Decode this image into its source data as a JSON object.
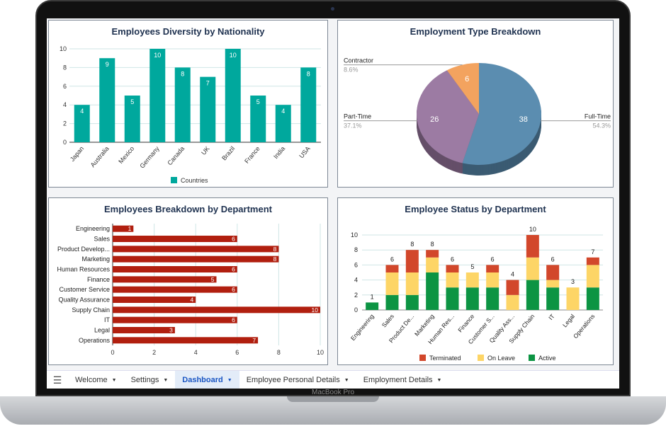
{
  "device_label": "MacBook Pro",
  "tabs": [
    {
      "label": "Welcome",
      "active": false
    },
    {
      "label": "Settings",
      "active": false
    },
    {
      "label": "Dashboard",
      "active": true
    },
    {
      "label": "Employee Personal Details",
      "active": false
    },
    {
      "label": "Employment Details",
      "active": false
    }
  ],
  "chart_data": [
    {
      "type": "bar",
      "title": "Employees Diversity by Nationality",
      "categories": [
        "Japan",
        "Australia",
        "Mexico",
        "Germany",
        "Canada",
        "UK",
        "Brazil",
        "France",
        "India",
        "USA"
      ],
      "series": [
        {
          "name": "Countries",
          "values": [
            4,
            9,
            5,
            10,
            8,
            7,
            10,
            5,
            4,
            8
          ]
        }
      ],
      "ylim": [
        0,
        10
      ],
      "yticks": [
        0,
        2,
        4,
        6,
        8,
        10
      ],
      "color": "#00a89d",
      "legend": "bottom",
      "grid": true
    },
    {
      "type": "pie",
      "title": "Employment Type Breakdown",
      "slices": [
        {
          "label": "Full-Time",
          "value": 38,
          "percent": "54.3%",
          "color": "#5b8db0"
        },
        {
          "label": "Part-Time",
          "value": 26,
          "percent": "37.1%",
          "color": "#9c7ba3"
        },
        {
          "label": "Contractor",
          "value": 6,
          "percent": "8.6%",
          "color": "#f3a35f"
        }
      ],
      "three_d": true
    },
    {
      "type": "bar",
      "orientation": "horizontal",
      "title": "Employees Breakdown by Department",
      "categories": [
        "Engineering",
        "Sales",
        "Product Develop...",
        "Marketing",
        "Human Resources",
        "Finance",
        "Customer Service",
        "Quality Assurance",
        "Supply Chain",
        "IT",
        "Legal",
        "Operations"
      ],
      "values": [
        1,
        6,
        8,
        8,
        6,
        5,
        6,
        4,
        10,
        6,
        3,
        7
      ],
      "xlim": [
        0,
        10
      ],
      "xticks": [
        0,
        2,
        4,
        6,
        8,
        10
      ],
      "color": "#b11f0f",
      "grid": true
    },
    {
      "type": "bar",
      "stacked": true,
      "title": "Employee Status by Department",
      "categories": [
        "Engineering",
        "Sales",
        "Product De...",
        "Marketing",
        "Human Res...",
        "Finance",
        "Customer S...",
        "Quality Ass...",
        "Supply Chain",
        "IT",
        "Legal",
        "Operations"
      ],
      "series": [
        {
          "name": "Active",
          "color": "#0c9443",
          "values": [
            1,
            2,
            2,
            5,
            3,
            3,
            3,
            0,
            4,
            3,
            0,
            3
          ]
        },
        {
          "name": "On Leave",
          "color": "#fdd566",
          "values": [
            0,
            3,
            3,
            2,
            2,
            2,
            2,
            2,
            3,
            1,
            3,
            3
          ]
        },
        {
          "name": "Terminated",
          "color": "#d2472b",
          "values": [
            0,
            1,
            3,
            1,
            1,
            0,
            1,
            2,
            3,
            2,
            0,
            1
          ]
        }
      ],
      "totals": [
        1,
        6,
        8,
        8,
        6,
        5,
        6,
        4,
        10,
        6,
        3,
        7
      ],
      "legend_order": [
        "Terminated",
        "On Leave",
        "Active"
      ],
      "ylim": [
        0,
        10
      ],
      "yticks": [
        0,
        2,
        4,
        6,
        8,
        10
      ],
      "legend": "bottom",
      "grid": true
    }
  ]
}
